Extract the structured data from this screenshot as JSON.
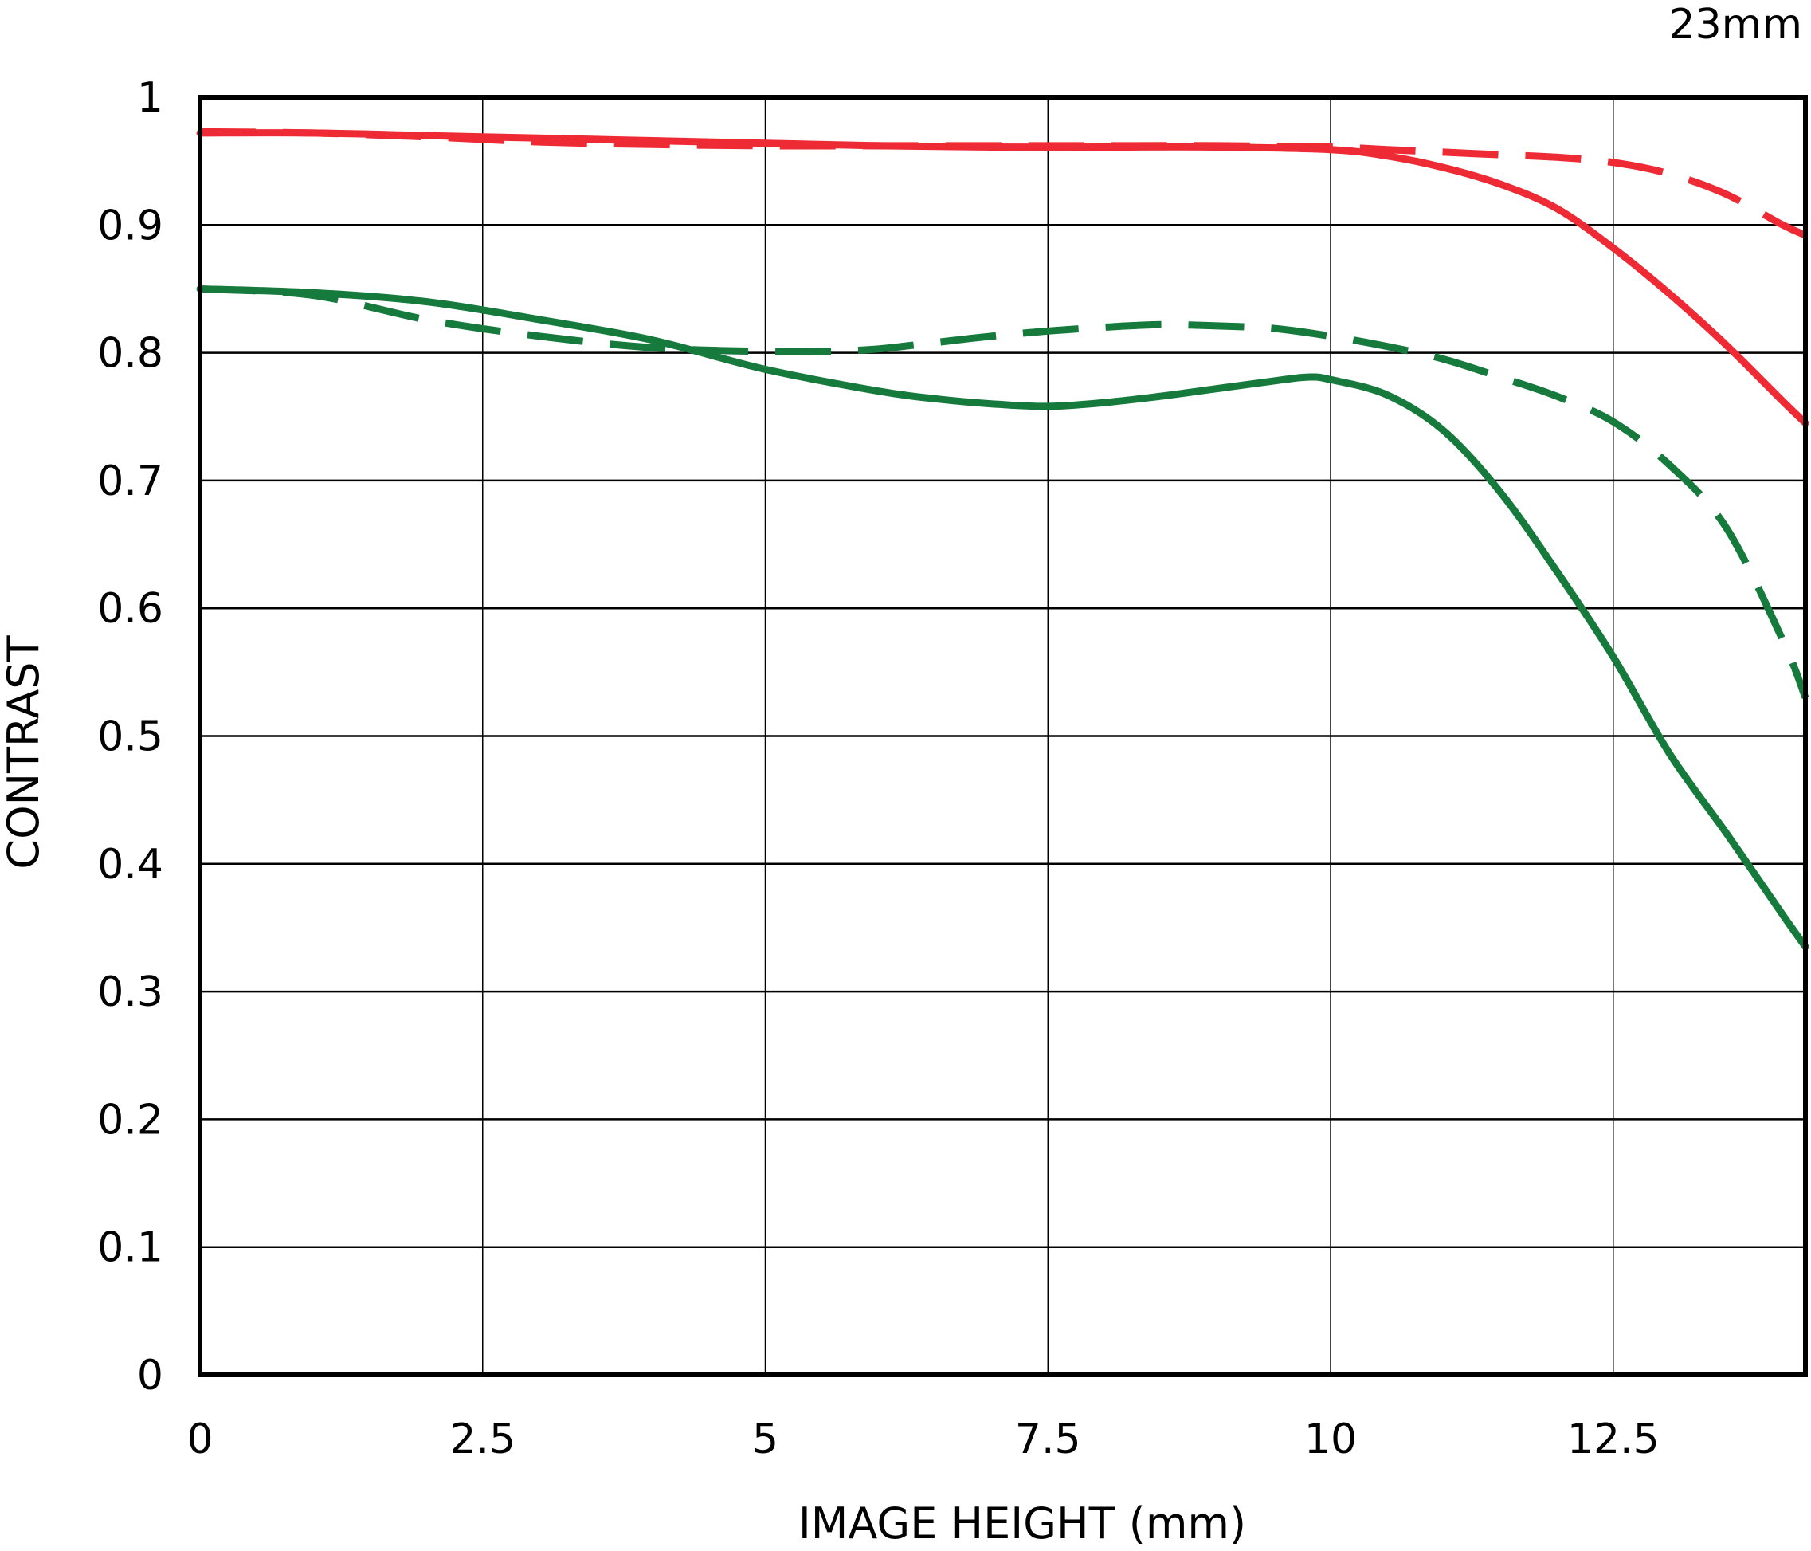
{
  "chart_data": {
    "type": "line",
    "corner_label": "23mm",
    "xlabel": "IMAGE HEIGHT (mm)",
    "ylabel": "CONTRAST",
    "xlim": [
      0,
      14.2
    ],
    "ylim": [
      0,
      1
    ],
    "grid": true,
    "x_ticks": [
      0,
      2.5,
      5,
      7.5,
      10,
      12.5
    ],
    "x_tick_labels": [
      "0",
      "2.5",
      "5",
      "7.5",
      "10",
      "12.5"
    ],
    "y_ticks": [
      0,
      0.1,
      0.2,
      0.3,
      0.4,
      0.5,
      0.6,
      0.7,
      0.8,
      0.9,
      1
    ],
    "y_tick_labels": [
      "0",
      "0.1",
      "0.2",
      "0.3",
      "0.4",
      "0.5",
      "0.6",
      "0.7",
      "0.8",
      "0.9",
      "1"
    ],
    "series": [
      {
        "color": "#ee2a35",
        "style": "solid",
        "x": [
          0,
          1,
          2,
          3,
          4,
          5,
          6,
          7,
          8,
          9,
          10,
          10.5,
          11,
          11.5,
          12,
          12.5,
          13,
          13.5,
          14,
          14.2
        ],
        "values": [
          0.972,
          0.972,
          0.97,
          0.968,
          0.966,
          0.964,
          0.962,
          0.961,
          0.961,
          0.961,
          0.959,
          0.954,
          0.945,
          0.932,
          0.913,
          0.882,
          0.846,
          0.806,
          0.762,
          0.745
        ]
      },
      {
        "color": "#ee2a35",
        "style": "dashed",
        "x": [
          0,
          1,
          2,
          3,
          4,
          5,
          6,
          7,
          8,
          9,
          10,
          10.5,
          11,
          11.5,
          12,
          12.5,
          13,
          13.5,
          14,
          14.2
        ],
        "values": [
          0.973,
          0.972,
          0.969,
          0.965,
          0.963,
          0.962,
          0.962,
          0.962,
          0.962,
          0.962,
          0.961,
          0.959,
          0.957,
          0.955,
          0.953,
          0.949,
          0.94,
          0.924,
          0.9,
          0.892
        ]
      },
      {
        "color": "#167a3c",
        "style": "solid",
        "x": [
          0,
          1,
          2,
          3,
          4,
          5,
          6,
          6.5,
          7,
          7.5,
          8,
          8.5,
          9,
          9.5,
          9.8,
          10,
          10.5,
          11,
          11.5,
          12,
          12.5,
          13,
          13.5,
          14,
          14.2
        ],
        "values": [
          0.85,
          0.847,
          0.84,
          0.826,
          0.81,
          0.787,
          0.77,
          0.764,
          0.76,
          0.758,
          0.761,
          0.766,
          0.772,
          0.778,
          0.781,
          0.779,
          0.767,
          0.739,
          0.691,
          0.629,
          0.562,
          0.486,
          0.424,
          0.36,
          0.335
        ]
      },
      {
        "color": "#167a3c",
        "style": "dashed",
        "x": [
          0,
          1,
          2,
          3,
          4,
          5,
          5.5,
          6,
          6.5,
          7,
          7.5,
          8,
          8.5,
          9,
          9.5,
          10,
          10.5,
          11,
          11.5,
          12,
          12.5,
          13,
          13.5,
          14,
          14.2
        ],
        "values": [
          0.85,
          0.845,
          0.826,
          0.813,
          0.804,
          0.801,
          0.801,
          0.803,
          0.808,
          0.813,
          0.817,
          0.82,
          0.822,
          0.821,
          0.819,
          0.813,
          0.805,
          0.795,
          0.781,
          0.766,
          0.746,
          0.712,
          0.663,
          0.575,
          0.53
        ]
      }
    ]
  }
}
